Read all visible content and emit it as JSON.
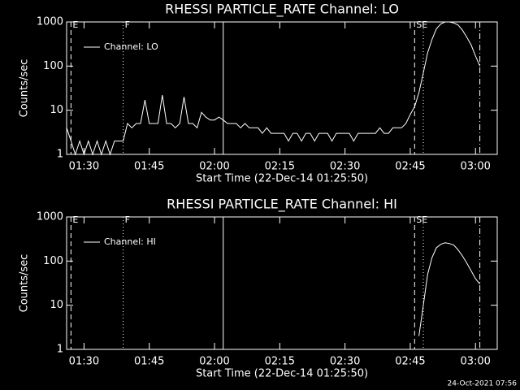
{
  "chart_data": [
    {
      "type": "line",
      "title": "RHESSI PARTICLE_RATE Channel: LO",
      "x_label": "Start Time (22-Dec-14 01:25:50)",
      "y_label": "Counts/sec",
      "log_y": true,
      "legend": "upper left",
      "xlim": [
        "01:26",
        "03:05"
      ],
      "xticks": [
        "01:30",
        "01:45",
        "02:00",
        "02:15",
        "02:30",
        "02:45",
        "03:00"
      ],
      "ylim": [
        1,
        1000
      ],
      "yticks": [
        1,
        10,
        100,
        1000
      ],
      "x": [
        "01:26",
        "01:27",
        "01:28",
        "01:29",
        "01:30",
        "01:31",
        "01:32",
        "01:33",
        "01:34",
        "01:35",
        "01:36",
        "01:37",
        "01:38",
        "01:39",
        "01:40",
        "01:41",
        "01:42",
        "01:43",
        "01:44",
        "01:45",
        "01:46",
        "01:47",
        "01:48",
        "01:49",
        "01:50",
        "01:51",
        "01:52",
        "01:53",
        "01:54",
        "01:55",
        "01:56",
        "01:57",
        "01:58",
        "01:59",
        "02:00",
        "02:01",
        "02:02",
        "02:03",
        "02:04",
        "02:05",
        "02:06",
        "02:07",
        "02:08",
        "02:09",
        "02:10",
        "02:11",
        "02:12",
        "02:13",
        "02:14",
        "02:15",
        "02:16",
        "02:17",
        "02:18",
        "02:19",
        "02:20",
        "02:21",
        "02:22",
        "02:23",
        "02:24",
        "02:25",
        "02:26",
        "02:27",
        "02:28",
        "02:29",
        "02:30",
        "02:31",
        "02:32",
        "02:33",
        "02:34",
        "02:35",
        "02:36",
        "02:37",
        "02:38",
        "02:39",
        "02:40",
        "02:41",
        "02:42",
        "02:43",
        "02:44",
        "02:45",
        "02:46",
        "02:47",
        "02:48",
        "02:49",
        "02:50",
        "02:51",
        "02:52",
        "02:53",
        "02:54",
        "02:55",
        "02:56",
        "02:57",
        "02:58",
        "02:59",
        "03:00",
        "03:01"
      ],
      "series": [
        {
          "name": "Channel: LO",
          "color": "#ffffff",
          "values": [
            4,
            2,
            1,
            2,
            1,
            2,
            1,
            2,
            1,
            2,
            1,
            2,
            2,
            2,
            5,
            4,
            5,
            5,
            17,
            5,
            5,
            5,
            22,
            5,
            5,
            4,
            5,
            20,
            5,
            5,
            4,
            9,
            7,
            6,
            6,
            7,
            6,
            5,
            5,
            5,
            4,
            5,
            4,
            4,
            4,
            3,
            4,
            3,
            3,
            3,
            3,
            2,
            3,
            3,
            2,
            3,
            3,
            2,
            3,
            3,
            3,
            2,
            3,
            3,
            3,
            3,
            2,
            3,
            3,
            3,
            3,
            3,
            4,
            3,
            3,
            4,
            4,
            4,
            5,
            8,
            12,
            25,
            70,
            200,
            400,
            700,
            900,
            1000,
            1000,
            950,
            850,
            650,
            450,
            300,
            170,
            100
          ]
        }
      ],
      "markers": [
        {
          "x": "01:27",
          "style": "dashed"
        },
        {
          "x": "01:39",
          "style": "dotted"
        },
        {
          "x": "02:02",
          "style": "solid"
        },
        {
          "x": "02:46",
          "style": "dashed"
        },
        {
          "x": "02:48",
          "style": "dotted"
        },
        {
          "x": "03:01",
          "style": "dashdot"
        }
      ],
      "annotations": [
        {
          "x": "01:27",
          "text": "E"
        },
        {
          "x": "01:39",
          "text": "F"
        },
        {
          "x": "02:46",
          "text": "SE"
        }
      ]
    },
    {
      "type": "line",
      "title": "RHESSI PARTICLE_RATE Channel: HI",
      "x_label": "Start Time (22-Dec-14 01:25:50)",
      "y_label": "Counts/sec",
      "log_y": true,
      "legend": "upper left",
      "xlim": [
        "01:26",
        "03:05"
      ],
      "xticks": [
        "01:30",
        "01:45",
        "02:00",
        "02:15",
        "02:30",
        "02:45",
        "03:00"
      ],
      "ylim": [
        1,
        1000
      ],
      "yticks": [
        1,
        10,
        100,
        1000
      ],
      "x": [
        "02:47",
        "02:48",
        "02:49",
        "02:50",
        "02:51",
        "02:52",
        "02:53",
        "02:54",
        "02:55",
        "02:56",
        "02:57",
        "02:58",
        "02:59",
        "03:00",
        "03:01"
      ],
      "series": [
        {
          "name": "Channel: HI",
          "color": "#ffffff",
          "values": [
            2,
            10,
            50,
            120,
            200,
            240,
            260,
            250,
            230,
            180,
            130,
            90,
            60,
            40,
            30
          ]
        }
      ],
      "markers": [
        {
          "x": "01:27",
          "style": "dashed"
        },
        {
          "x": "01:39",
          "style": "dotted"
        },
        {
          "x": "02:02",
          "style": "solid"
        },
        {
          "x": "02:46",
          "style": "dashed"
        },
        {
          "x": "02:48",
          "style": "dotted"
        },
        {
          "x": "03:01",
          "style": "dashdot"
        }
      ],
      "annotations": [
        {
          "x": "01:27",
          "text": "E"
        },
        {
          "x": "01:39",
          "text": "F"
        },
        {
          "x": "02:46",
          "text": "SE"
        }
      ]
    }
  ],
  "footer": "24-Oct-2021 07:56"
}
